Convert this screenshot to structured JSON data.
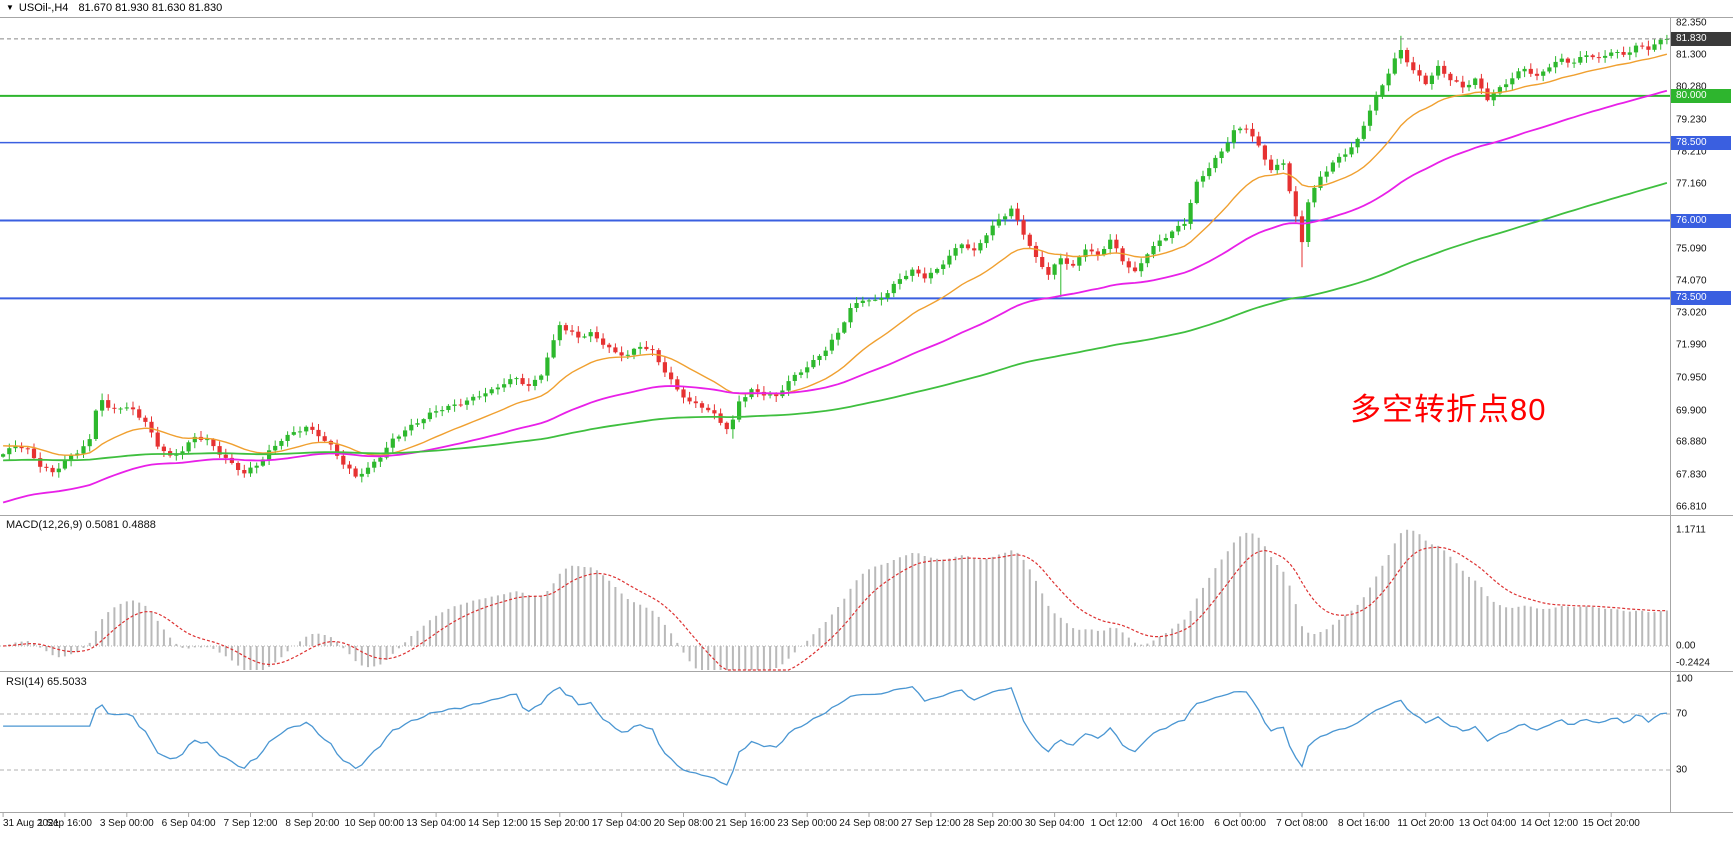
{
  "header": {
    "expander_icon": "▼",
    "symbol_period": "USOil-,H4",
    "ohlc": "81.670 81.930 81.630 81.830"
  },
  "annotation": {
    "text": "多空转折点80",
    "color": "#ff0000"
  },
  "price_axis": {
    "labels": [
      "82.350",
      "81.300",
      "80.280",
      "79.230",
      "78.210",
      "77.160",
      "75.090",
      "74.070",
      "73.020",
      "71.990",
      "70.950",
      "69.900",
      "68.880",
      "67.830",
      "66.810"
    ],
    "badges": [
      {
        "text": "81.830",
        "bg": "#3a3a3a",
        "role": "current-price"
      },
      {
        "text": "80.000",
        "bg": "#2eb52e",
        "role": "horizontal-line"
      },
      {
        "text": "78.500",
        "bg": "#3a5fe0",
        "role": "horizontal-line"
      },
      {
        "text": "76.000",
        "bg": "#3a5fe0",
        "role": "horizontal-line"
      },
      {
        "text": "73.500",
        "bg": "#3a5fe0",
        "role": "horizontal-line"
      }
    ]
  },
  "macd_panel": {
    "label": "MACD(12,26,9)",
    "values": "0.5081 0.4888",
    "axis_labels": [
      "1.1711",
      "0.00",
      "-0.2424"
    ]
  },
  "rsi_panel": {
    "label": "RSI(14)",
    "value": "65.5033",
    "axis_labels": [
      "100",
      "70",
      "30"
    ]
  },
  "time_axis": {
    "labels": [
      "31 Aug 2021",
      "1 Sep 16:00",
      "3 Sep 00:00",
      "6 Sep 04:00",
      "7 Sep 12:00",
      "8 Sep 20:00",
      "10 Sep 00:00",
      "13 Sep 04:00",
      "14 Sep 12:00",
      "15 Sep 20:00",
      "17 Sep 04:00",
      "20 Sep 08:00",
      "21 Sep 16:00",
      "23 Sep 00:00",
      "24 Sep 08:00",
      "27 Sep 12:00",
      "28 Sep 20:00",
      "30 Sep 04:00",
      "1 Oct 12:00",
      "4 Oct 16:00",
      "6 Oct 00:00",
      "7 Oct 08:00",
      "8 Oct 16:00",
      "11 Oct 20:00",
      "13 Oct 04:00",
      "14 Oct 12:00",
      "15 Oct 20:00"
    ]
  },
  "chart_data": {
    "type": "candlestick",
    "symbol": "USOil",
    "timeframe": "H4",
    "title": "USOil-,H4 81.670 81.930 81.630 81.830",
    "bars": 270,
    "ylim": [
      66.55,
      82.5
    ],
    "current_price": 81.83,
    "up_color": "#2db82d",
    "down_color": "#e63232",
    "price_anchors": [
      [
        0,
        68.5
      ],
      [
        2,
        68.75
      ],
      [
        4,
        68.6
      ],
      [
        6,
        68.15
      ],
      [
        8,
        67.95
      ],
      [
        10,
        68.3
      ],
      [
        12,
        68.55
      ],
      [
        14,
        68.9
      ],
      [
        15,
        69.9
      ],
      [
        16,
        70.25
      ],
      [
        17,
        69.95
      ],
      [
        19,
        70.05
      ],
      [
        21,
        69.95
      ],
      [
        23,
        69.5
      ],
      [
        25,
        68.75
      ],
      [
        27,
        68.4
      ],
      [
        29,
        68.65
      ],
      [
        31,
        69.1
      ],
      [
        33,
        68.95
      ],
      [
        35,
        68.5
      ],
      [
        37,
        68.15
      ],
      [
        39,
        67.9
      ],
      [
        41,
        68.2
      ],
      [
        43,
        68.6
      ],
      [
        45,
        68.95
      ],
      [
        47,
        69.15
      ],
      [
        49,
        69.35
      ],
      [
        51,
        69.15
      ],
      [
        53,
        68.8
      ],
      [
        55,
        68.2
      ],
      [
        57,
        67.75
      ],
      [
        59,
        68.0
      ],
      [
        61,
        68.45
      ],
      [
        63,
        69.0
      ],
      [
        65,
        69.3
      ],
      [
        67,
        69.5
      ],
      [
        69,
        69.75
      ],
      [
        71,
        69.95
      ],
      [
        73,
        70.1
      ],
      [
        75,
        70.25
      ],
      [
        77,
        70.4
      ],
      [
        79,
        70.5
      ],
      [
        81,
        70.75
      ],
      [
        83,
        70.95
      ],
      [
        85,
        70.7
      ],
      [
        87,
        71.1
      ],
      [
        89,
        72.1
      ],
      [
        90,
        72.65
      ],
      [
        91,
        72.45
      ],
      [
        93,
        72.25
      ],
      [
        95,
        72.4
      ],
      [
        97,
        72.1
      ],
      [
        99,
        71.75
      ],
      [
        101,
        71.65
      ],
      [
        103,
        71.95
      ],
      [
        105,
        71.8
      ],
      [
        107,
        71.2
      ],
      [
        109,
        70.6
      ],
      [
        111,
        70.15
      ],
      [
        113,
        70.0
      ],
      [
        115,
        69.75
      ],
      [
        117,
        69.35
      ],
      [
        118,
        69.6
      ],
      [
        119,
        70.25
      ],
      [
        121,
        70.55
      ],
      [
        123,
        70.4
      ],
      [
        125,
        70.3
      ],
      [
        127,
        70.85
      ],
      [
        129,
        71.2
      ],
      [
        131,
        71.5
      ],
      [
        133,
        71.85
      ],
      [
        135,
        72.35
      ],
      [
        137,
        73.15
      ],
      [
        139,
        73.5
      ],
      [
        141,
        73.45
      ],
      [
        143,
        73.7
      ],
      [
        145,
        74.1
      ],
      [
        147,
        74.35
      ],
      [
        149,
        74.2
      ],
      [
        151,
        74.45
      ],
      [
        153,
        74.9
      ],
      [
        155,
        75.25
      ],
      [
        157,
        74.95
      ],
      [
        159,
        75.55
      ],
      [
        161,
        76.05
      ],
      [
        163,
        76.4
      ],
      [
        165,
        75.6
      ],
      [
        167,
        74.75
      ],
      [
        169,
        74.25
      ],
      [
        171,
        74.8
      ],
      [
        173,
        74.55
      ],
      [
        175,
        75.15
      ],
      [
        177,
        74.85
      ],
      [
        179,
        75.35
      ],
      [
        181,
        74.7
      ],
      [
        183,
        74.35
      ],
      [
        185,
        75.0
      ],
      [
        187,
        75.35
      ],
      [
        189,
        75.6
      ],
      [
        191,
        75.9
      ],
      [
        193,
        77.2
      ],
      [
        195,
        77.75
      ],
      [
        197,
        78.25
      ],
      [
        199,
        78.85
      ],
      [
        201,
        78.95
      ],
      [
        203,
        78.35
      ],
      [
        205,
        77.65
      ],
      [
        207,
        77.9
      ],
      [
        209,
        76.1
      ],
      [
        210,
        75.3
      ],
      [
        211,
        76.6
      ],
      [
        213,
        77.35
      ],
      [
        215,
        77.85
      ],
      [
        217,
        78.2
      ],
      [
        219,
        78.6
      ],
      [
        221,
        79.55
      ],
      [
        223,
        80.3
      ],
      [
        225,
        81.15
      ],
      [
        226,
        81.45
      ],
      [
        228,
        80.85
      ],
      [
        230,
        80.45
      ],
      [
        232,
        80.9
      ],
      [
        234,
        80.5
      ],
      [
        236,
        80.25
      ],
      [
        238,
        80.55
      ],
      [
        240,
        79.95
      ],
      [
        242,
        80.25
      ],
      [
        244,
        80.55
      ],
      [
        246,
        80.85
      ],
      [
        248,
        80.6
      ],
      [
        250,
        81.0
      ],
      [
        252,
        81.2
      ],
      [
        254,
        81.05
      ],
      [
        256,
        81.3
      ],
      [
        258,
        81.15
      ],
      [
        260,
        81.45
      ],
      [
        262,
        81.35
      ],
      [
        264,
        81.6
      ],
      [
        266,
        81.5
      ],
      [
        268,
        81.72
      ],
      [
        269,
        81.83
      ]
    ],
    "low_overrides": [
      [
        118,
        69.0
      ],
      [
        171,
        73.55
      ],
      [
        210,
        74.5
      ]
    ],
    "high_overrides": [
      [
        16,
        70.45
      ],
      [
        226,
        81.93
      ]
    ],
    "horizontal_lines": [
      {
        "value": 80.0,
        "color": "#2eb52e",
        "width": 2
      },
      {
        "value": 78.5,
        "color": "#3a5fe0",
        "width": 1.5
      },
      {
        "value": 76.0,
        "color": "#3a5fe0",
        "width": 2
      },
      {
        "value": 73.5,
        "color": "#3a5fe0",
        "width": 2
      }
    ],
    "moving_averages": [
      {
        "period": 20,
        "color": "#f0a030",
        "seed": 68.8,
        "width": 1.4
      },
      {
        "period": 60,
        "color": "#e820e8",
        "seed": 66.9,
        "width": 1.8
      },
      {
        "period": 160,
        "color": "#3fbf3f",
        "seed": 68.3,
        "width": 1.8
      }
    ],
    "indicators": {
      "macd": {
        "fast": 12,
        "slow": 26,
        "signal": 9,
        "last_macd": 0.5081,
        "last_signal": 0.4888,
        "display_max": 1.1711,
        "display_min": -0.2424,
        "histogram_color": "#b9b9b9",
        "signal_color": "#dd3333"
      },
      "rsi": {
        "period": 14,
        "last_value": 65.5033,
        "levels": [
          70,
          30
        ],
        "line_color": "#4a96d2",
        "ylim": [
          0,
          100
        ]
      }
    }
  }
}
